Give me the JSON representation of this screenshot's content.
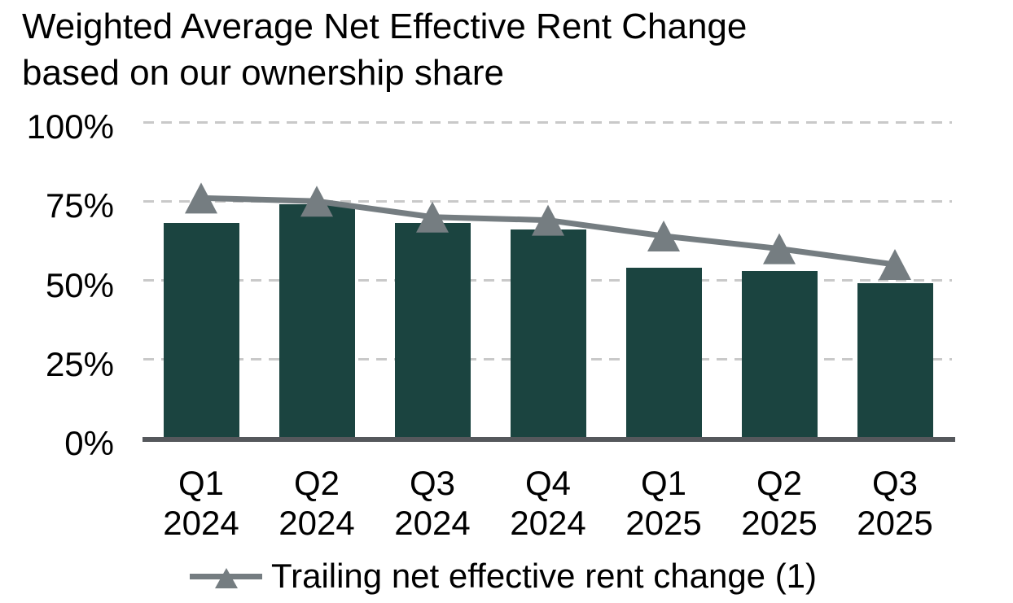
{
  "title": {
    "line1": "Weighted Average Net Effective Rent Change",
    "line2": "based on our ownership share"
  },
  "legend": {
    "label": "Trailing net effective rent change (1)"
  },
  "colors": {
    "bar": "#1b4440",
    "line": "#757d81",
    "axis": "#55585c",
    "gridline": "#c9c9c9",
    "text": "#000000",
    "background": "#ffffff"
  },
  "chart_data": {
    "type": "bar",
    "title": "Weighted Average Net Effective Rent Change based on our ownership share",
    "categories": [
      "Q1 2024",
      "Q2 2024",
      "Q3 2024",
      "Q4 2024",
      "Q1 2025",
      "Q2 2025",
      "Q3 2025"
    ],
    "series": [
      {
        "name": "Weighted Average Net Effective Rent Change based on our ownership share",
        "type": "bar",
        "unit": "%",
        "values": [
          68,
          74,
          68,
          66,
          54,
          53,
          49
        ]
      },
      {
        "name": "Trailing net effective rent change (1)",
        "type": "line",
        "marker": "triangle",
        "unit": "%",
        "values": [
          76,
          75,
          70,
          69,
          64,
          60,
          55
        ]
      }
    ],
    "xlabel": "",
    "ylabel": "",
    "ylim": [
      0,
      100
    ],
    "y_ticks": [
      0,
      25,
      50,
      75,
      100
    ],
    "y_tick_labels": [
      "0%",
      "25%",
      "50%",
      "75%",
      "100%"
    ],
    "grid": "horizontal-dashed",
    "legend_position": "bottom"
  }
}
